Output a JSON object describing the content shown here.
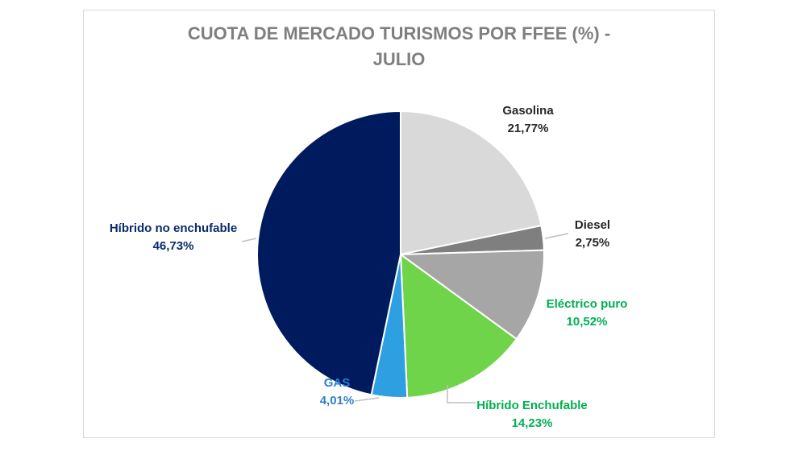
{
  "chart_data": {
    "type": "pie",
    "title_line1": "CUOTA DE MERCADO TURISMOS POR FFEE (%)  -",
    "title_line2": "JULIO",
    "slices": [
      {
        "label": "Gasolina",
        "value": 21.77,
        "display": "21,77%",
        "color": "#d9d9d9",
        "text_color": "#262626"
      },
      {
        "label": "Diesel",
        "value": 2.75,
        "display": "2,75%",
        "color": "#7f7f7f",
        "text_color": "#262626"
      },
      {
        "label": "Eléctrico puro",
        "value": 10.52,
        "display": "10,52%",
        "color": "#a6a6a6",
        "text_color": "#00b050"
      },
      {
        "label": "Híbrido Enchufable",
        "value": 14.23,
        "display": "14,23%",
        "color": "#6fd44a",
        "text_color": "#00b050"
      },
      {
        "label": "GAS",
        "value": 4.01,
        "display": "4,01%",
        "color": "#2e9fe0",
        "text_color": "#2e7fd0"
      },
      {
        "label": "Híbrido no enchufable",
        "value": 46.73,
        "display": "46,73%",
        "color": "#001a5e",
        "text_color": "#0a2a6e"
      }
    ]
  }
}
